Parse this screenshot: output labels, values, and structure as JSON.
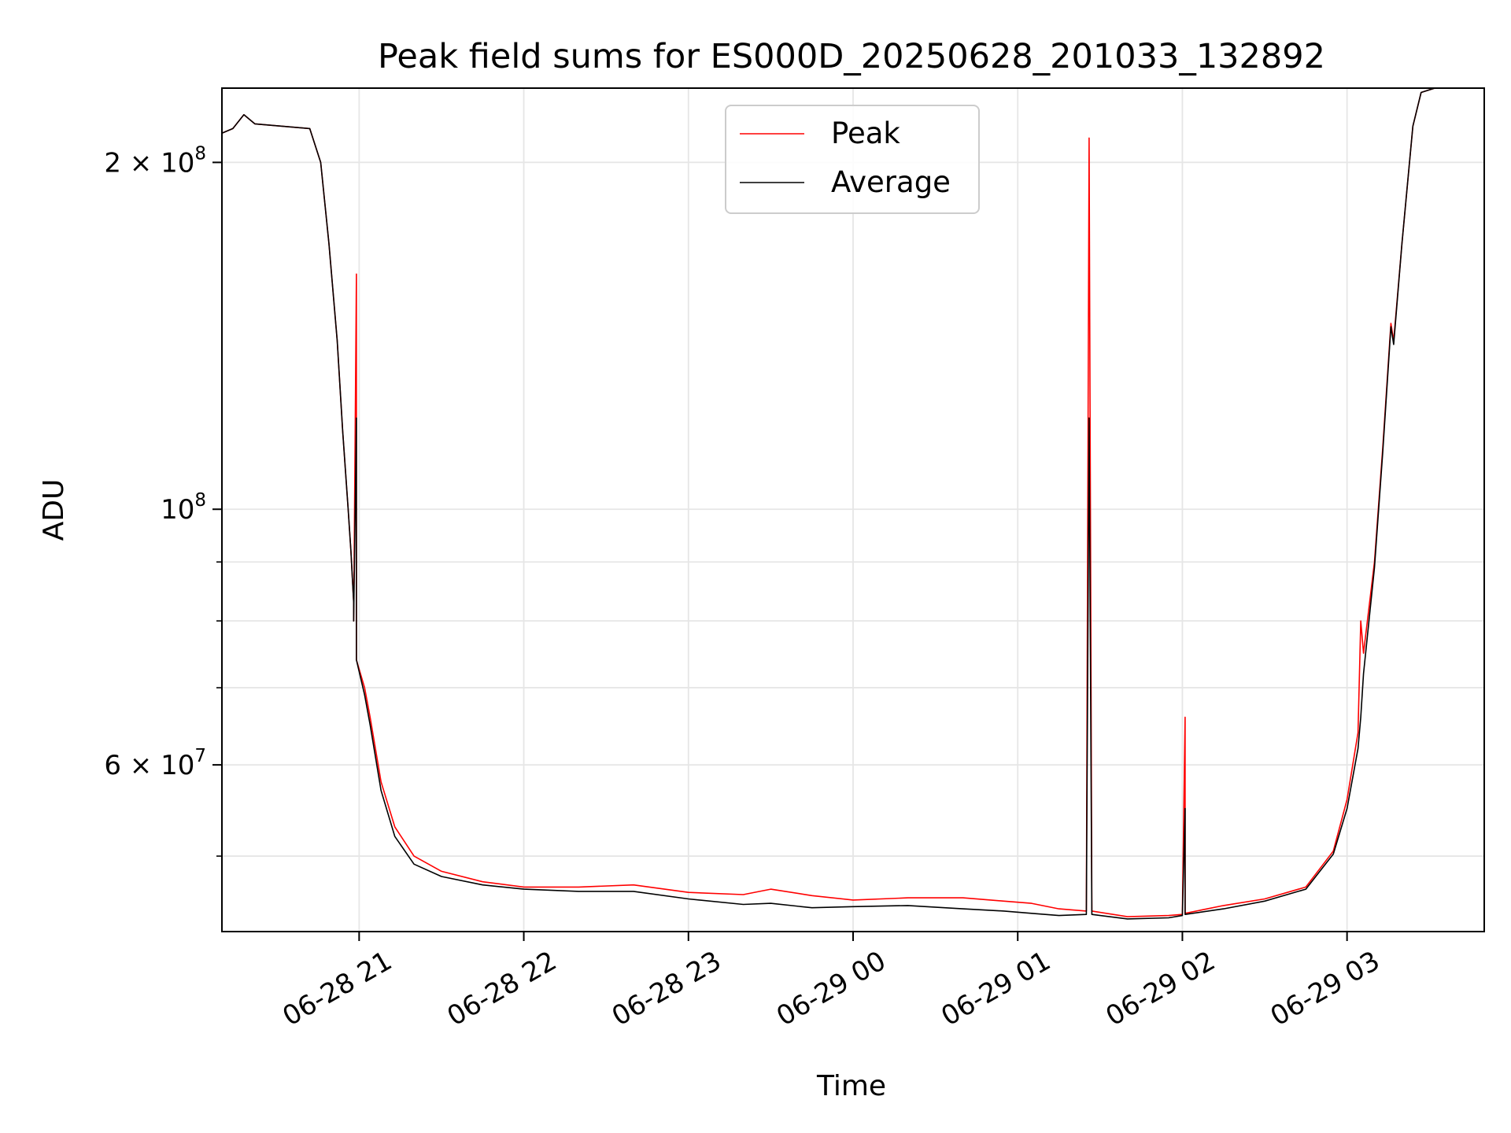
{
  "chart_data": {
    "type": "line",
    "title": "Peak field sums for ES000D_20250628_201033_132892",
    "xlabel": "Time",
    "ylabel": "ADU",
    "yscale": "log",
    "ylim": [
      43000000,
      232000000
    ],
    "xlim": [
      "2025-06-28 20:10",
      "2025-06-29 03:50"
    ],
    "grid": true,
    "legend_position": "upper-center",
    "x_ticks": [
      {
        "value": "2025-06-28 21:00",
        "label": "06-28 21"
      },
      {
        "value": "2025-06-28 22:00",
        "label": "06-28 22"
      },
      {
        "value": "2025-06-28 23:00",
        "label": "06-28 23"
      },
      {
        "value": "2025-06-29 00:00",
        "label": "06-29 00"
      },
      {
        "value": "2025-06-29 01:00",
        "label": "06-29 01"
      },
      {
        "value": "2025-06-29 02:00",
        "label": "06-29 02"
      },
      {
        "value": "2025-06-29 03:00",
        "label": "06-29 03"
      }
    ],
    "y_ticks_major": [
      {
        "value": 200000000,
        "mantissa": "2",
        "exponent": "8"
      },
      {
        "value": 100000000,
        "mantissa": "",
        "exponent": "8"
      },
      {
        "value": 60000000,
        "mantissa": "6",
        "exponent": "7"
      }
    ],
    "y_ticks_minor": [
      50000000,
      70000000,
      80000000,
      90000000
    ],
    "series": [
      {
        "name": "Peak",
        "color": "#ff0000",
        "points": [
          [
            "2025-06-28 20:10",
            212000000
          ],
          [
            "2025-06-28 20:14",
            214000000
          ],
          [
            "2025-06-28 20:18",
            220000000
          ],
          [
            "2025-06-28 20:22",
            216000000
          ],
          [
            "2025-06-28 20:32",
            215000000
          ],
          [
            "2025-06-28 20:42",
            214000000
          ],
          [
            "2025-06-28 20:46",
            200000000
          ],
          [
            "2025-06-28 20:49",
            170000000
          ],
          [
            "2025-06-28 20:52",
            140000000
          ],
          [
            "2025-06-28 20:54",
            117000000
          ],
          [
            "2025-06-28 20:56",
            100000000
          ],
          [
            "2025-06-28 20:57",
            92000000
          ],
          [
            "2025-06-28 20:58",
            83000000
          ],
          [
            "2025-06-28 20:58",
            80000000
          ],
          [
            "2025-06-28 20:59",
            160000000
          ],
          [
            "2025-06-28 20:59",
            74000000
          ],
          [
            "2025-06-28 21:02",
            70000000
          ],
          [
            "2025-06-28 21:04",
            66000000
          ],
          [
            "2025-06-28 21:08",
            58000000
          ],
          [
            "2025-06-28 21:13",
            53000000
          ],
          [
            "2025-06-28 21:20",
            50000000
          ],
          [
            "2025-06-28 21:30",
            48500000
          ],
          [
            "2025-06-28 21:45",
            47500000
          ],
          [
            "2025-06-28 22:00",
            47000000
          ],
          [
            "2025-06-28 22:20",
            47000000
          ],
          [
            "2025-06-28 22:40",
            47200000
          ],
          [
            "2025-06-28 23:00",
            46500000
          ],
          [
            "2025-06-28 23:20",
            46300000
          ],
          [
            "2025-06-28 23:30",
            46800000
          ],
          [
            "2025-06-28 23:45",
            46200000
          ],
          [
            "2025-06-29 00:00",
            45800000
          ],
          [
            "2025-06-29 00:20",
            46000000
          ],
          [
            "2025-06-29 00:40",
            46000000
          ],
          [
            "2025-06-29 00:55",
            45700000
          ],
          [
            "2025-06-29 01:05",
            45500000
          ],
          [
            "2025-06-29 01:15",
            45000000
          ],
          [
            "2025-06-29 01:25",
            44800000
          ],
          [
            "2025-06-29 01:26",
            210000000
          ],
          [
            "2025-06-29 01:27",
            44800000
          ],
          [
            "2025-06-29 01:40",
            44300000
          ],
          [
            "2025-06-29 01:55",
            44400000
          ],
          [
            "2025-06-29 02:00",
            44500000
          ],
          [
            "2025-06-29 02:01",
            66000000
          ],
          [
            "2025-06-29 02:01",
            44600000
          ],
          [
            "2025-06-29 02:15",
            45300000
          ],
          [
            "2025-06-29 02:30",
            45900000
          ],
          [
            "2025-06-29 02:45",
            47000000
          ],
          [
            "2025-06-29 02:55",
            50500000
          ],
          [
            "2025-06-29 03:00",
            56000000
          ],
          [
            "2025-06-29 03:04",
            64000000
          ],
          [
            "2025-06-29 03:05",
            80000000
          ],
          [
            "2025-06-29 03:06",
            75000000
          ],
          [
            "2025-06-29 03:10",
            90000000
          ],
          [
            "2025-06-29 03:13",
            113000000
          ],
          [
            "2025-06-29 03:16",
            145000000
          ],
          [
            "2025-06-29 03:17",
            140000000
          ],
          [
            "2025-06-29 03:20",
            170000000
          ],
          [
            "2025-06-29 03:24",
            215000000
          ],
          [
            "2025-06-29 03:27",
            230000000
          ],
          [
            "2025-06-29 03:32",
            232000000
          ],
          [
            "2025-06-29 03:50",
            232000000
          ]
        ]
      },
      {
        "name": "Average",
        "color": "#000000",
        "points": [
          [
            "2025-06-28 20:10",
            212000000
          ],
          [
            "2025-06-28 20:14",
            214000000
          ],
          [
            "2025-06-28 20:18",
            220000000
          ],
          [
            "2025-06-28 20:22",
            216000000
          ],
          [
            "2025-06-28 20:32",
            215000000
          ],
          [
            "2025-06-28 20:42",
            214000000
          ],
          [
            "2025-06-28 20:46",
            200000000
          ],
          [
            "2025-06-28 20:49",
            170000000
          ],
          [
            "2025-06-28 20:52",
            140000000
          ],
          [
            "2025-06-28 20:54",
            117000000
          ],
          [
            "2025-06-28 20:56",
            100000000
          ],
          [
            "2025-06-28 20:57",
            92000000
          ],
          [
            "2025-06-28 20:58",
            83000000
          ],
          [
            "2025-06-28 20:58",
            80000000
          ],
          [
            "2025-06-28 20:59",
            120000000
          ],
          [
            "2025-06-28 20:59",
            74000000
          ],
          [
            "2025-06-28 21:02",
            69000000
          ],
          [
            "2025-06-28 21:04",
            65000000
          ],
          [
            "2025-06-28 21:08",
            57000000
          ],
          [
            "2025-06-28 21:13",
            52000000
          ],
          [
            "2025-06-28 21:20",
            49200000
          ],
          [
            "2025-06-28 21:30",
            48000000
          ],
          [
            "2025-06-28 21:45",
            47200000
          ],
          [
            "2025-06-28 22:00",
            46800000
          ],
          [
            "2025-06-28 22:20",
            46600000
          ],
          [
            "2025-06-28 22:40",
            46600000
          ],
          [
            "2025-06-28 23:00",
            45900000
          ],
          [
            "2025-06-28 23:20",
            45400000
          ],
          [
            "2025-06-28 23:30",
            45500000
          ],
          [
            "2025-06-28 23:45",
            45100000
          ],
          [
            "2025-06-29 00:00",
            45200000
          ],
          [
            "2025-06-29 00:20",
            45300000
          ],
          [
            "2025-06-29 00:40",
            45000000
          ],
          [
            "2025-06-29 00:55",
            44800000
          ],
          [
            "2025-06-29 01:05",
            44600000
          ],
          [
            "2025-06-29 01:15",
            44400000
          ],
          [
            "2025-06-29 01:25",
            44500000
          ],
          [
            "2025-06-29 01:26",
            120000000
          ],
          [
            "2025-06-29 01:27",
            44500000
          ],
          [
            "2025-06-29 01:40",
            44100000
          ],
          [
            "2025-06-29 01:55",
            44200000
          ],
          [
            "2025-06-29 02:00",
            44400000
          ],
          [
            "2025-06-29 02:01",
            55000000
          ],
          [
            "2025-06-29 02:01",
            44500000
          ],
          [
            "2025-06-29 02:15",
            45000000
          ],
          [
            "2025-06-29 02:30",
            45700000
          ],
          [
            "2025-06-29 02:45",
            46800000
          ],
          [
            "2025-06-29 02:55",
            50200000
          ],
          [
            "2025-06-29 03:00",
            55000000
          ],
          [
            "2025-06-29 03:04",
            62000000
          ],
          [
            "2025-06-29 03:05",
            66000000
          ],
          [
            "2025-06-29 03:06",
            72000000
          ],
          [
            "2025-06-29 03:10",
            89000000
          ],
          [
            "2025-06-29 03:13",
            112000000
          ],
          [
            "2025-06-29 03:16",
            144000000
          ],
          [
            "2025-06-29 03:17",
            139000000
          ],
          [
            "2025-06-29 03:20",
            170000000
          ],
          [
            "2025-06-29 03:24",
            215000000
          ],
          [
            "2025-06-29 03:27",
            230000000
          ],
          [
            "2025-06-29 03:32",
            232000000
          ],
          [
            "2025-06-29 03:50",
            232000000
          ]
        ]
      }
    ]
  }
}
